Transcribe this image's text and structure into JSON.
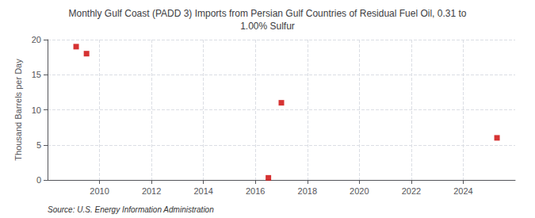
{
  "chart_data": {
    "type": "scatter",
    "title": "Monthly Gulf Coast (PADD 3) Imports from Persian Gulf Countries of Residual Fuel Oil, 0.31 to\n1.00% Sulfur",
    "ylabel": "Thousand Barrels per Day",
    "source": "Source: U.S. Energy Information Administration",
    "x": [
      2009.1,
      2009.5,
      2016.5,
      2017.0,
      2025.3
    ],
    "values": [
      19.0,
      18.0,
      0.3,
      11.0,
      6.0
    ],
    "color": "#cc0000",
    "marker": "square",
    "xlim": [
      2008.0,
      2026.0
    ],
    "ylim": [
      0,
      20
    ],
    "xticks": [
      2010,
      2012,
      2014,
      2016,
      2018,
      2020,
      2022,
      2024
    ],
    "yticks": [
      0,
      5,
      10,
      15,
      20
    ],
    "grid": true
  }
}
